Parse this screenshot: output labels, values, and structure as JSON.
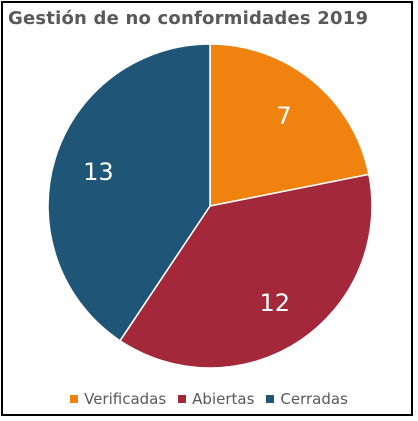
{
  "chart_data": {
    "type": "pie",
    "title": "Gestión de no conformidades 2019",
    "categories": [
      "Verificadas",
      "Abiertas",
      "Cerradas"
    ],
    "values": [
      7,
      12,
      13
    ],
    "colors": [
      "#F0820F",
      "#A3293A",
      "#1F5677"
    ],
    "data_labels": [
      "7",
      "12",
      "13"
    ],
    "start_angle": "12 o'clock",
    "direction": "clockwise",
    "legend": "bottom"
  }
}
